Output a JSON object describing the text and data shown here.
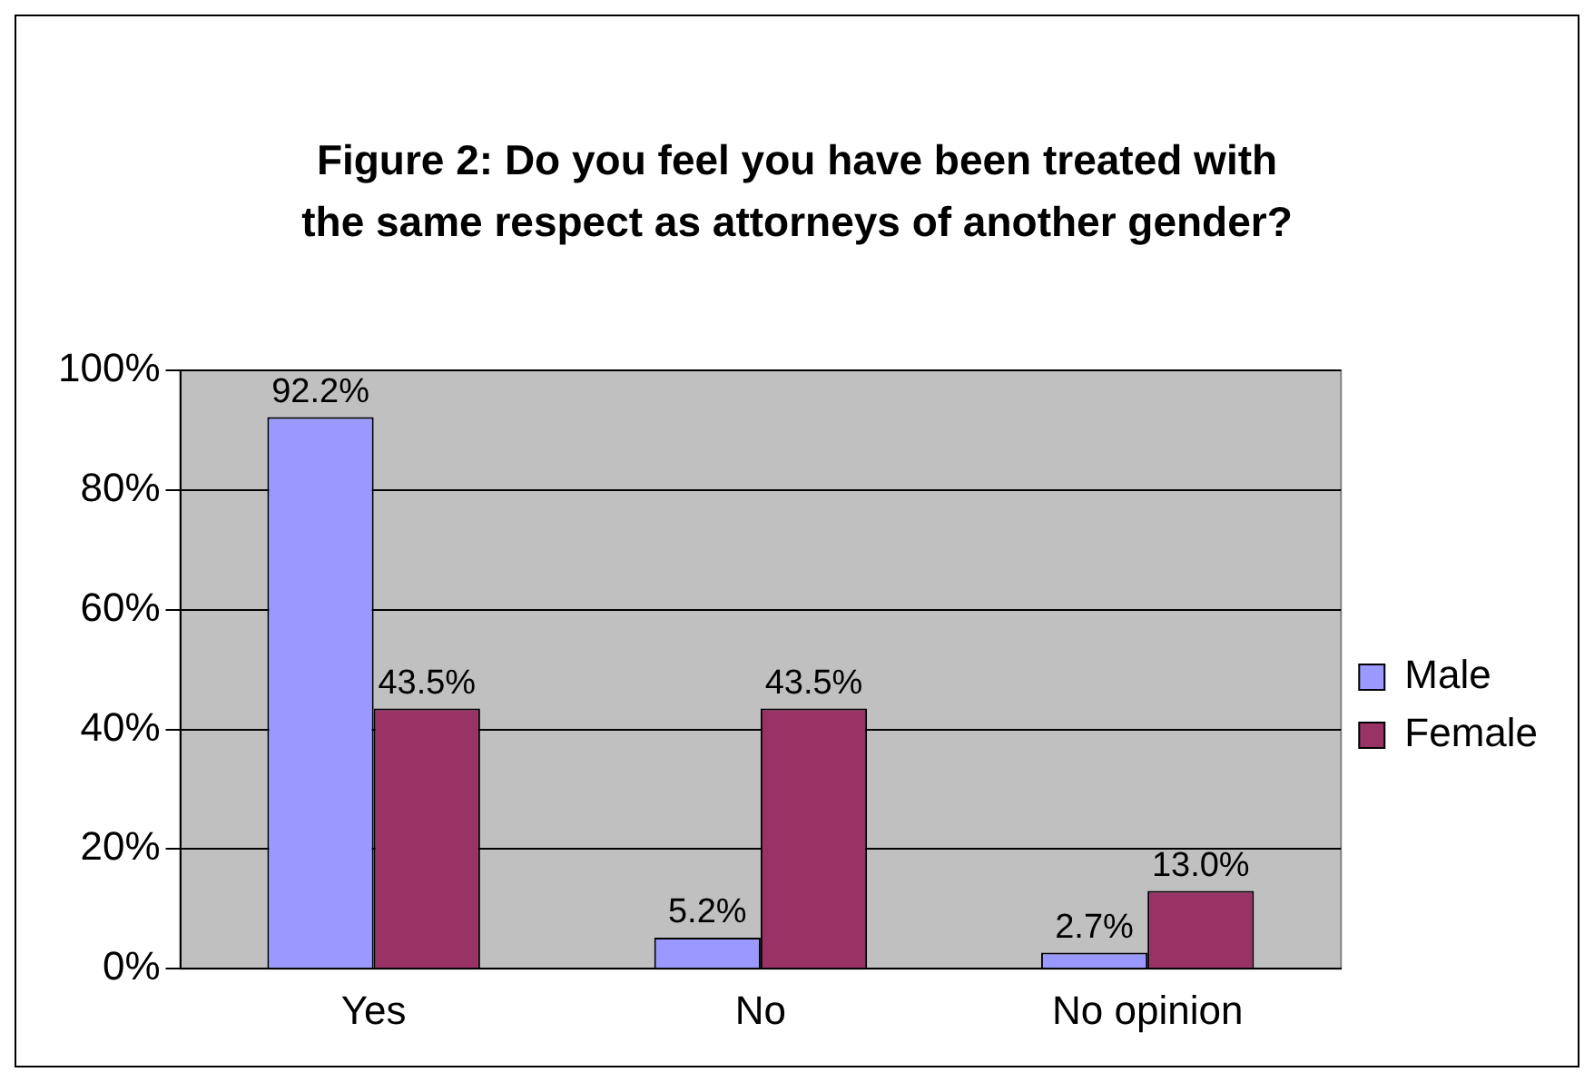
{
  "chart_data": {
    "type": "bar",
    "title": "Figure 2: Do you feel you have been treated with the same respect as attorneys of another gender?",
    "categories": [
      "Yes",
      "No",
      "No opinion"
    ],
    "series": [
      {
        "name": "Male",
        "color": "#9999ff",
        "values": [
          92.2,
          5.2,
          2.7
        ],
        "value_labels": [
          "92.2%",
          "5.2%",
          "2.7%"
        ]
      },
      {
        "name": "Female",
        "color": "#993366",
        "values": [
          43.5,
          43.5,
          13.0
        ],
        "value_labels": [
          "43.5%",
          "43.5%",
          "13.0%"
        ]
      }
    ],
    "ylim": [
      0,
      100
    ],
    "yticks": [
      {
        "value": 0,
        "label": "0%"
      },
      {
        "value": 20,
        "label": "20%"
      },
      {
        "value": 40,
        "label": "40%"
      },
      {
        "value": 60,
        "label": "60%"
      },
      {
        "value": 80,
        "label": "80%"
      },
      {
        "value": 100,
        "label": "100%"
      }
    ],
    "grid": "y",
    "legend": "right"
  }
}
